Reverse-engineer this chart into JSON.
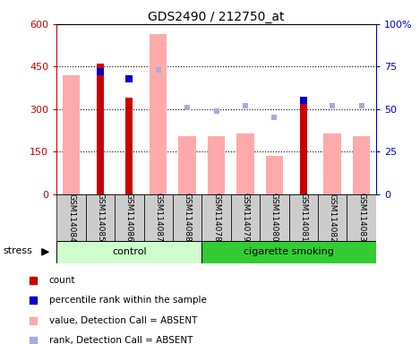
{
  "title": "GDS2490 / 212750_at",
  "samples": [
    "GSM114084",
    "GSM114085",
    "GSM114086",
    "GSM114087",
    "GSM114088",
    "GSM114078",
    "GSM114079",
    "GSM114080",
    "GSM114081",
    "GSM114082",
    "GSM114083"
  ],
  "count_values": [
    null,
    460,
    340,
    null,
    null,
    null,
    null,
    null,
    320,
    null,
    null
  ],
  "percentile_rank": [
    null,
    72,
    68,
    null,
    null,
    null,
    null,
    null,
    55,
    null,
    null
  ],
  "absent_value": [
    420,
    null,
    null,
    565,
    205,
    205,
    215,
    135,
    null,
    215,
    205
  ],
  "absent_rank": [
    null,
    null,
    null,
    73,
    51,
    49,
    52,
    45,
    null,
    52,
    52
  ],
  "ylim_left": [
    0,
    600
  ],
  "ylim_right": [
    0,
    100
  ],
  "yticks_left": [
    0,
    150,
    300,
    450,
    600
  ],
  "ytick_labels_left": [
    "0",
    "150",
    "300",
    "450",
    "600"
  ],
  "ytick_labels_right": [
    "0",
    "25",
    "50",
    "75",
    "100%"
  ],
  "color_count": "#cc0000",
  "color_percentile": "#0000cc",
  "color_absent_value": "#ffaaaa",
  "color_absent_rank": "#aaaadd",
  "label_bg": "#cccccc",
  "control_bg": "#ccffcc",
  "smoking_bg": "#33cc33",
  "absent_rank_scale": 6
}
